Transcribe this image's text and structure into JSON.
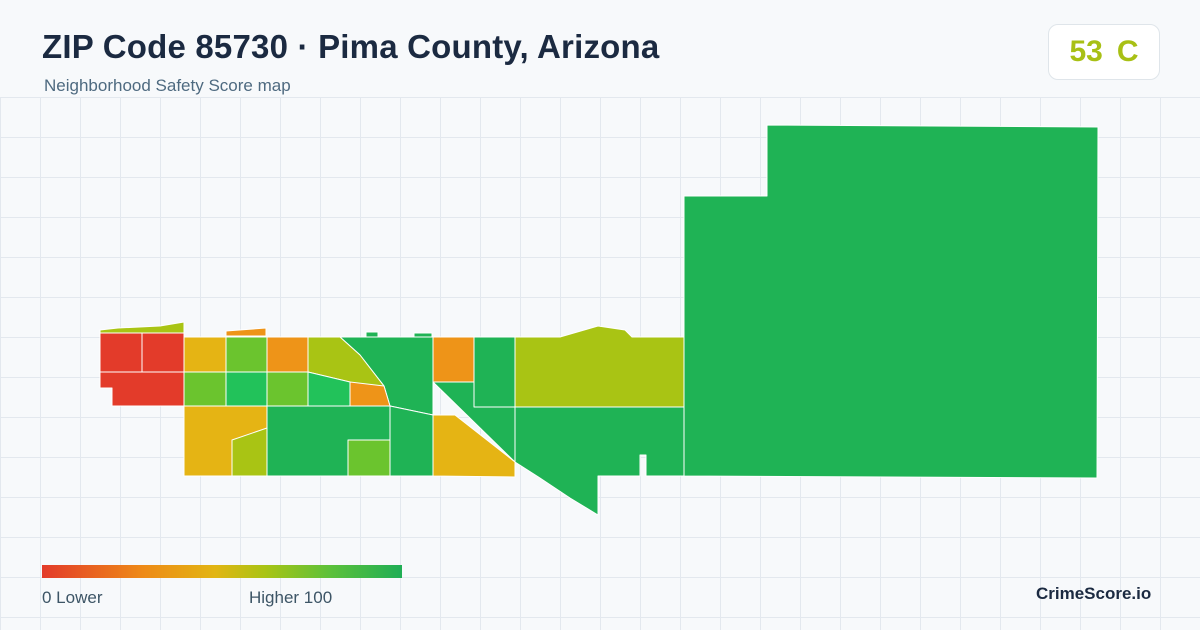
{
  "header": {
    "title": "ZIP Code 85730 · Pima County, Arizona",
    "subtitle": "Neighborhood Safety Score map"
  },
  "score_badge": {
    "score": "53",
    "grade": "C",
    "color": "#a8c015"
  },
  "legend": {
    "low_label": "0  Lower",
    "high_label": "Higher  100",
    "low_color": "#e33b2a",
    "high_color": "#1fae55"
  },
  "brand": "CrimeScore.io",
  "palette": {
    "red": "#e33b2a",
    "orange": "#ee9418",
    "yellow": "#e5b414",
    "olive": "#a9c414",
    "lightgreen": "#6bc42e",
    "green": "#1fb355",
    "brightgreen": "#22c25a"
  }
}
